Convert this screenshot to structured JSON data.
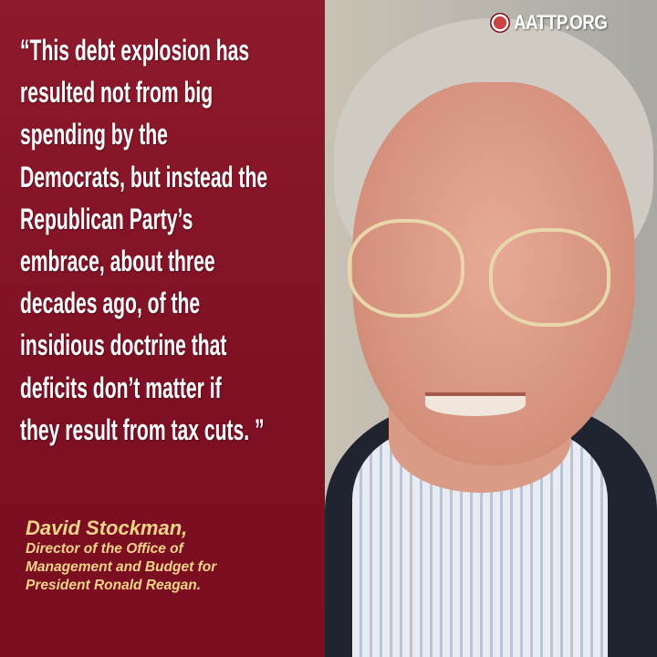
{
  "quote": {
    "lines": [
      "“This debt explosion has",
      "resulted not from big",
      "spending by the",
      "Democrats, but instead the",
      "Republican Party’s",
      "embrace, about three",
      "decades ago, of the",
      "insidious doctrine that",
      "deficits don’t matter if",
      "they result from tax cuts. ”"
    ]
  },
  "attribution": {
    "name": "David Stockman,",
    "title_lines": [
      "Director of the Office of",
      "Management and Budget for",
      "President Ronald Reagan."
    ]
  },
  "logo": {
    "text": "AATTP.ORG",
    "icon": "aattp-seal-icon"
  },
  "colors": {
    "panel": "#7f1024",
    "quote_text": "#ffffff",
    "attribution_text": "#f3d58a"
  }
}
